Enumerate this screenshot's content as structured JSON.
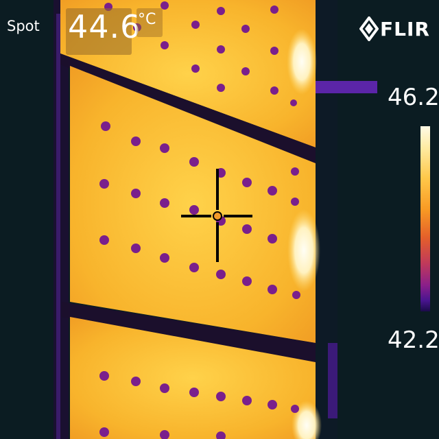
{
  "measurement": {
    "label": "Spot",
    "value": "44.6",
    "unit": "°C"
  },
  "brand": {
    "name": "FLIR",
    "icon": "flir-diamond-icon"
  },
  "scale": {
    "max": "46.2",
    "min": "42.2",
    "palette": "iron"
  },
  "colors": {
    "background": "#0b1c22",
    "panel": "#f7b52a",
    "hotspot": "#fffbe6",
    "cell_dot": "#7a1f8c",
    "frame": "#1a0f2e"
  }
}
